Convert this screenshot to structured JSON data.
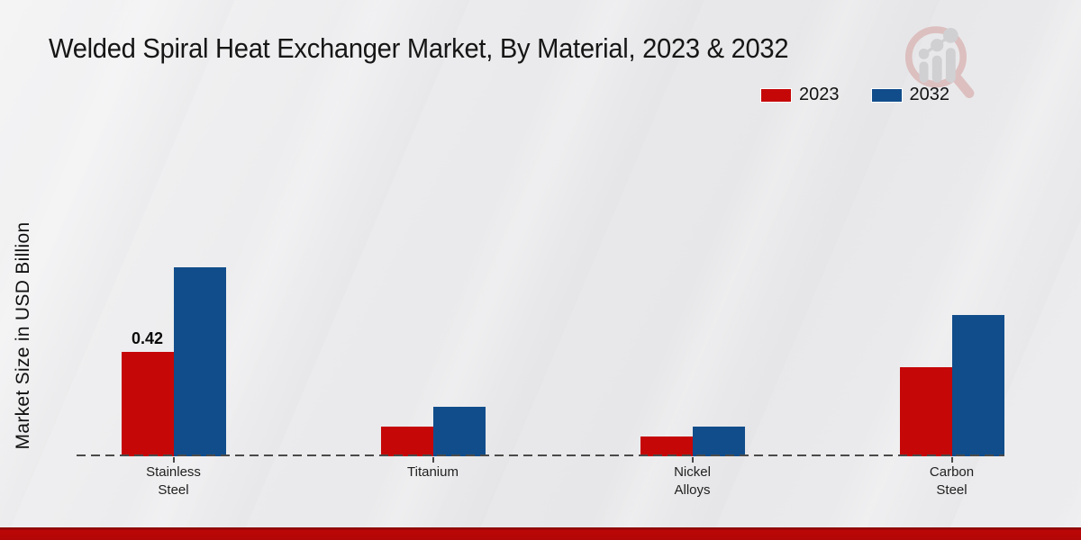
{
  "title": "Welded Spiral Heat Exchanger Market, By Material, 2023 & 2032",
  "ylabel": "Market Size in USD Billion",
  "legend": [
    {
      "label": "2023",
      "color": "#c50708"
    },
    {
      "label": "2032",
      "color": "#114d8b"
    }
  ],
  "colors": {
    "series_2023_red": "#c50708",
    "series_2032_blue": "#114d8b",
    "axis_dash": "#4a4a4a",
    "footer_band_red": "#b20606",
    "background_gray": "#ebebed"
  },
  "watermark_icon": "magnifier-growth-chart-logo",
  "chart_data": {
    "type": "bar",
    "title": "Welded Spiral Heat Exchanger Market, By Material, 2023 & 2032",
    "categories": [
      "Stainless Steel",
      "Titanium",
      "Nickel Alloys",
      "Carbon Steel"
    ],
    "category_label_lines": [
      [
        "Stainless",
        "Steel"
      ],
      [
        "Titanium"
      ],
      [
        "Nickel",
        "Alloys"
      ],
      [
        "Carbon",
        "Steel"
      ]
    ],
    "series": [
      {
        "name": "2023",
        "color": "#c50708",
        "values": [
          0.42,
          0.12,
          0.08,
          0.36
        ]
      },
      {
        "name": "2032",
        "color": "#114d8b",
        "values": [
          0.76,
          0.2,
          0.12,
          0.57
        ]
      }
    ],
    "xlabel": "",
    "ylabel": "Market Size in USD Billion",
    "ylim": [
      0,
      0.9
    ],
    "grid": false,
    "axis_style": "dashed-baseline-only",
    "legend_position": "top-right",
    "bar_label": {
      "series": "2023",
      "category": "Stainless Steel",
      "text": "0.42"
    }
  }
}
